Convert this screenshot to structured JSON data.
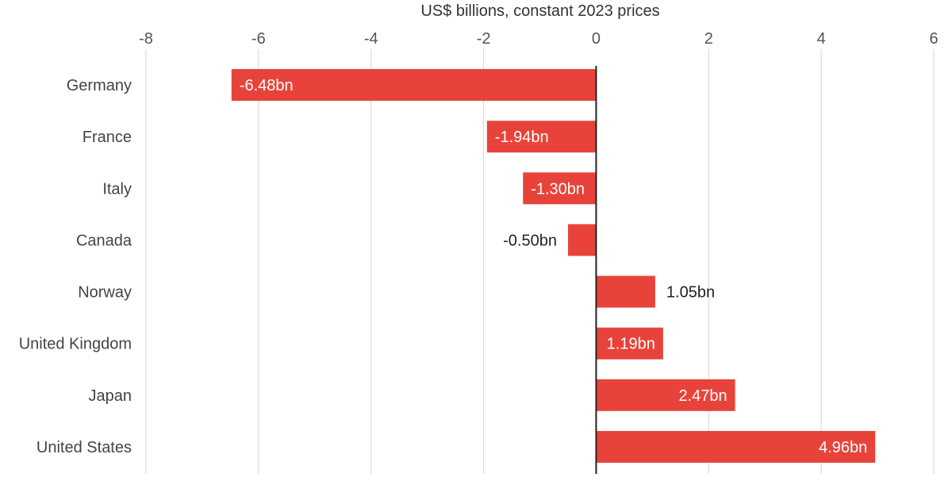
{
  "chart_data": {
    "type": "bar",
    "orientation": "horizontal",
    "xlabel": "US$ billions, constant 2023 prices",
    "ylabel": "",
    "xlim": [
      -8,
      6
    ],
    "xticks": [
      -8,
      -6,
      -4,
      -2,
      0,
      2,
      4,
      6
    ],
    "xtick_labels": [
      "-8",
      "-6",
      "-4",
      "-2",
      "0",
      "2",
      "4",
      "6"
    ],
    "grid": true,
    "categories": [
      "Germany",
      "France",
      "Italy",
      "Canada",
      "Norway",
      "United Kingdom",
      "Japan",
      "United States"
    ],
    "values": [
      -6.48,
      -1.94,
      -1.3,
      -0.5,
      1.05,
      1.19,
      2.47,
      4.96
    ],
    "data_labels": [
      "-6.48bn",
      "-1.94bn",
      "-1.30bn",
      "-0.50bn",
      "1.05bn",
      "1.19bn",
      "2.47bn",
      "4.96bn"
    ],
    "colors": {
      "bar": "#e8433a",
      "label_inside": "#ffffff",
      "label_outside": "#222222"
    }
  }
}
